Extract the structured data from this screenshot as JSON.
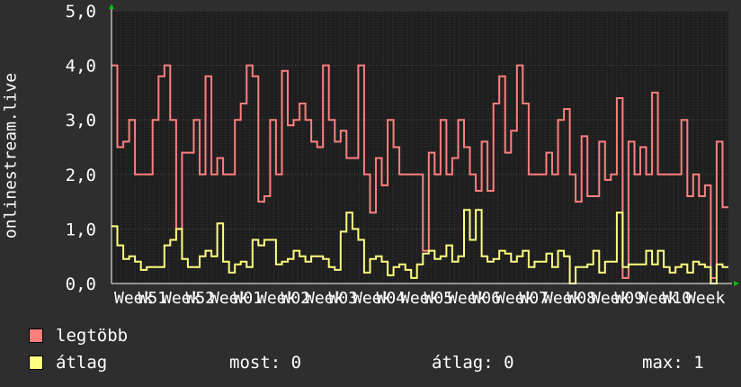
{
  "y_axis_label": "onlinestream.live",
  "legend": [
    {
      "label": "legtöbb",
      "color": "#ff7f7f"
    },
    {
      "label": "átlag",
      "color": "#ffff7f"
    }
  ],
  "stats": {
    "now": "most: 0",
    "avg": "átlag: 0",
    "max": "max: 1"
  },
  "colors": {
    "background": "#2e2e2e",
    "plot_bg": "#1f1f1f",
    "grid": "#4a4a4a",
    "axis_arrow": "#00c000"
  },
  "chart_data": {
    "type": "line",
    "ylim": [
      0,
      5
    ],
    "y_ticks": [
      "0,0",
      "1,0",
      "2,0",
      "3,0",
      "4,0",
      "5,0"
    ],
    "x_tick_labels": [
      "Week",
      "W51",
      "Week",
      "W52",
      "Week",
      "W01",
      "Week",
      "W02",
      "Week",
      "W03",
      "Week",
      "W04",
      "Week",
      "W05",
      "Week",
      "W06",
      "Week",
      "W07",
      "Week",
      "W08",
      "Week",
      "W09",
      "Week",
      "W10",
      "Week"
    ],
    "series": [
      {
        "name": "legtöbb",
        "color": "#ff7f7f",
        "values": [
          4.0,
          2.5,
          2.6,
          3.0,
          2.0,
          2.0,
          2.0,
          3.0,
          3.8,
          4.0,
          3.0,
          1.0,
          2.4,
          2.4,
          3.0,
          2.0,
          3.8,
          2.0,
          2.3,
          2.0,
          2.0,
          3.0,
          3.3,
          4.0,
          3.8,
          1.5,
          1.6,
          3.0,
          2.0,
          3.9,
          2.9,
          3.0,
          3.3,
          3.0,
          2.6,
          2.5,
          4.0,
          3.0,
          2.6,
          2.8,
          2.3,
          2.3,
          4.0,
          2.0,
          1.3,
          2.3,
          1.8,
          3.0,
          2.5,
          2.0,
          2.0,
          2.0,
          2.0,
          0.6,
          2.4,
          2.0,
          3.0,
          2.0,
          2.3,
          3.0,
          2.5,
          2.0,
          1.7,
          2.6,
          1.7,
          3.3,
          3.8,
          2.4,
          2.8,
          4.0,
          3.3,
          2.0,
          2.0,
          2.0,
          2.4,
          2.0,
          3.0,
          3.2,
          2.0,
          1.5,
          2.7,
          1.6,
          1.6,
          2.6,
          1.9,
          2.0,
          3.4,
          0.1,
          2.6,
          2.0,
          2.5,
          2.0,
          3.5,
          2.0,
          2.0,
          2.0,
          2.0,
          3.0,
          1.6,
          2.0,
          1.6,
          1.8,
          0.1,
          2.6,
          1.4
        ]
      },
      {
        "name": "átlag",
        "color": "#ffff7f",
        "values": [
          1.05,
          0.7,
          0.45,
          0.5,
          0.4,
          0.25,
          0.3,
          0.3,
          0.3,
          0.7,
          0.8,
          1.0,
          0.45,
          0.3,
          0.3,
          0.5,
          0.6,
          0.5,
          1.1,
          0.4,
          0.2,
          0.35,
          0.4,
          0.3,
          0.8,
          0.7,
          0.8,
          0.8,
          0.35,
          0.4,
          0.45,
          0.6,
          0.5,
          0.4,
          0.5,
          0.5,
          0.45,
          0.3,
          0.25,
          0.95,
          1.3,
          1.0,
          0.8,
          0.2,
          0.45,
          0.5,
          0.4,
          0.15,
          0.3,
          0.35,
          0.25,
          0.1,
          0.35,
          0.55,
          0.6,
          0.45,
          0.5,
          0.7,
          0.4,
          0.5,
          1.35,
          0.8,
          1.35,
          0.5,
          0.4,
          0.45,
          0.6,
          0.55,
          0.4,
          0.5,
          0.6,
          0.3,
          0.4,
          0.4,
          0.55,
          0.3,
          0.6,
          0.5,
          0.0,
          0.3,
          0.3,
          0.35,
          0.6,
          0.2,
          0.4,
          0.4,
          1.3,
          0.3,
          0.35,
          0.35,
          0.35,
          0.6,
          0.35,
          0.6,
          0.3,
          0.2,
          0.3,
          0.35,
          0.2,
          0.4,
          0.35,
          0.3,
          0.0,
          0.35,
          0.3
        ]
      }
    ]
  }
}
